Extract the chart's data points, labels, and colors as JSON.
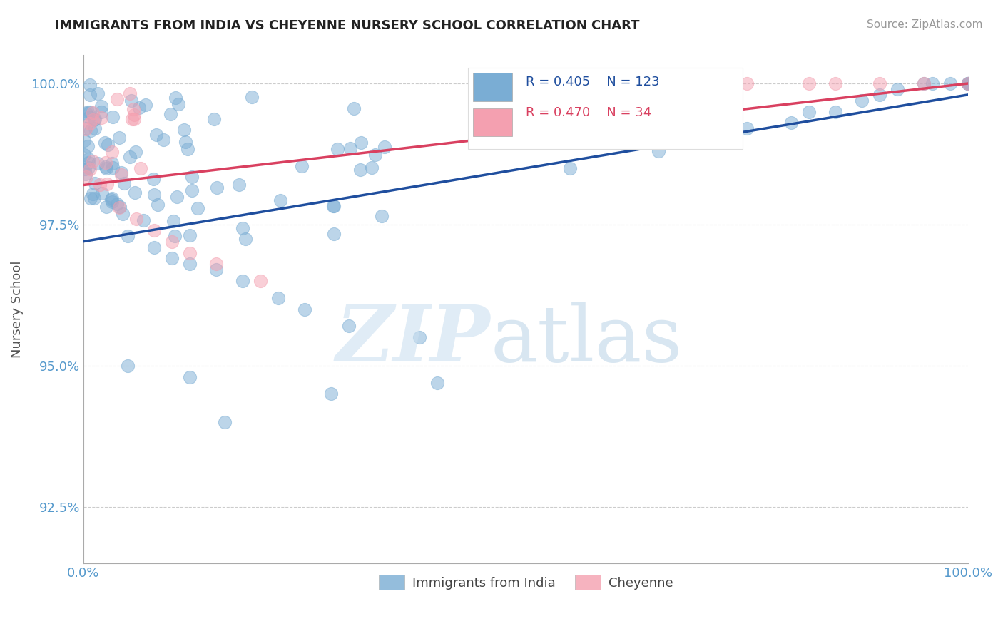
{
  "title": "IMMIGRANTS FROM INDIA VS CHEYENNE NURSERY SCHOOL CORRELATION CHART",
  "source": "Source: ZipAtlas.com",
  "ylabel": "Nursery School",
  "legend_labels": [
    "Immigrants from India",
    "Cheyenne"
  ],
  "blue_R": 0.405,
  "blue_N": 123,
  "pink_R": 0.47,
  "pink_N": 34,
  "xlim": [
    0.0,
    1.0
  ],
  "ylim": [
    0.915,
    1.005
  ],
  "ytick_vals": [
    0.925,
    0.95,
    0.975,
    1.0
  ],
  "ytick_labels": [
    "92.5%",
    "95.0%",
    "97.5%",
    "100.0%"
  ],
  "xtick_vals": [
    0.0,
    1.0
  ],
  "xtick_labels": [
    "0.0%",
    "100.0%"
  ],
  "blue_color": "#7aadd4",
  "pink_color": "#f4a0b0",
  "blue_line_color": "#1f4e9e",
  "pink_line_color": "#d94060",
  "background_color": "#ffffff",
  "grid_color": "#cccccc",
  "blue_line_x0": 0.0,
  "blue_line_y0": 0.972,
  "blue_line_x1": 1.0,
  "blue_line_y1": 0.998,
  "pink_line_x0": 0.0,
  "pink_line_y0": 0.982,
  "pink_line_x1": 1.0,
  "pink_line_y1": 1.002
}
